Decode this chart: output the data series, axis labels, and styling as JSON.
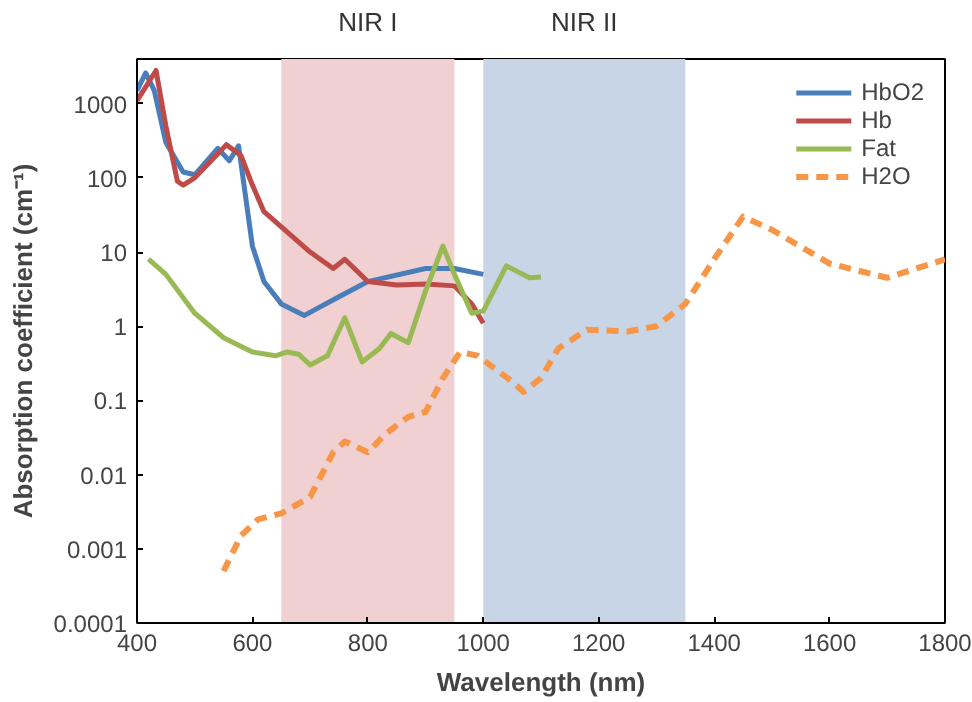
{
  "chart_data": {
    "type": "line",
    "xlabel": "Wavelength (nm)",
    "ylabel": "Absorption coefficient (cm⁻¹)",
    "log": "y",
    "xlim": [
      400,
      1800
    ],
    "ylim": [
      0.0001,
      4000
    ],
    "xticks": [
      400,
      600,
      800,
      1000,
      1200,
      1400,
      1600,
      1800
    ],
    "yticks": [
      0.0001,
      0.001,
      0.01,
      0.1,
      1,
      10,
      100,
      1000
    ],
    "grid": false,
    "legend": "top right",
    "marker": "none",
    "bands": [
      {
        "axis": "x",
        "from": 650,
        "to": 950,
        "label": "NIR I",
        "color": "#f0d0d0"
      },
      {
        "axis": "x",
        "from": 1000,
        "to": 1350,
        "label": "NIR II",
        "color": "#c7d5e7"
      }
    ],
    "series": [
      {
        "name": "HbO2",
        "color": "#4a7ebb",
        "line_style": "solid",
        "x": [
          400,
          415,
          430,
          450,
          480,
          500,
          540,
          560,
          576,
          600,
          620,
          650,
          690,
          750,
          800,
          900,
          950,
          1000
        ],
        "values": [
          1500,
          2600,
          1500,
          300,
          120,
          110,
          250,
          170,
          270,
          12,
          4,
          2,
          1.4,
          2.5,
          4,
          6,
          6,
          5
        ]
      },
      {
        "name": "Hb",
        "color": "#be4b48",
        "line_style": "solid",
        "x": [
          400,
          433,
          450,
          470,
          480,
          500,
          555,
          580,
          600,
          620,
          700,
          740,
          760,
          800,
          850,
          900,
          950,
          980,
          1000
        ],
        "values": [
          1100,
          2800,
          500,
          90,
          80,
          100,
          280,
          200,
          80,
          35,
          10,
          6,
          8,
          4,
          3.6,
          3.7,
          3.5,
          2,
          1.1
        ]
      },
      {
        "name": "Fat",
        "color": "#98b954",
        "line_style": "solid",
        "x": [
          420,
          450,
          500,
          550,
          600,
          640,
          660,
          680,
          700,
          730,
          760,
          790,
          820,
          840,
          870,
          900,
          930,
          950,
          980,
          1000,
          1040,
          1080,
          1100
        ],
        "values": [
          8,
          5,
          1.5,
          0.7,
          0.45,
          0.4,
          0.45,
          0.42,
          0.3,
          0.4,
          1.3,
          0.33,
          0.5,
          0.8,
          0.6,
          3,
          12,
          5,
          1.5,
          1.6,
          6.5,
          4.5,
          4.6
        ]
      },
      {
        "name": "H2O",
        "color": "#f79646",
        "line_style": "dashed",
        "x": [
          550,
          580,
          610,
          650,
          700,
          740,
          760,
          800,
          830,
          870,
          900,
          930,
          960,
          990,
          1050,
          1070,
          1100,
          1130,
          1180,
          1250,
          1300,
          1350,
          1400,
          1450,
          1500,
          1600,
          1700,
          1800
        ],
        "values": [
          0.0005,
          0.0015,
          0.0025,
          0.003,
          0.005,
          0.02,
          0.028,
          0.02,
          0.035,
          0.06,
          0.07,
          0.2,
          0.45,
          0.4,
          0.18,
          0.13,
          0.2,
          0.5,
          0.9,
          0.85,
          1.0,
          2,
          8,
          30,
          20,
          7,
          4.5,
          8
        ]
      }
    ]
  }
}
